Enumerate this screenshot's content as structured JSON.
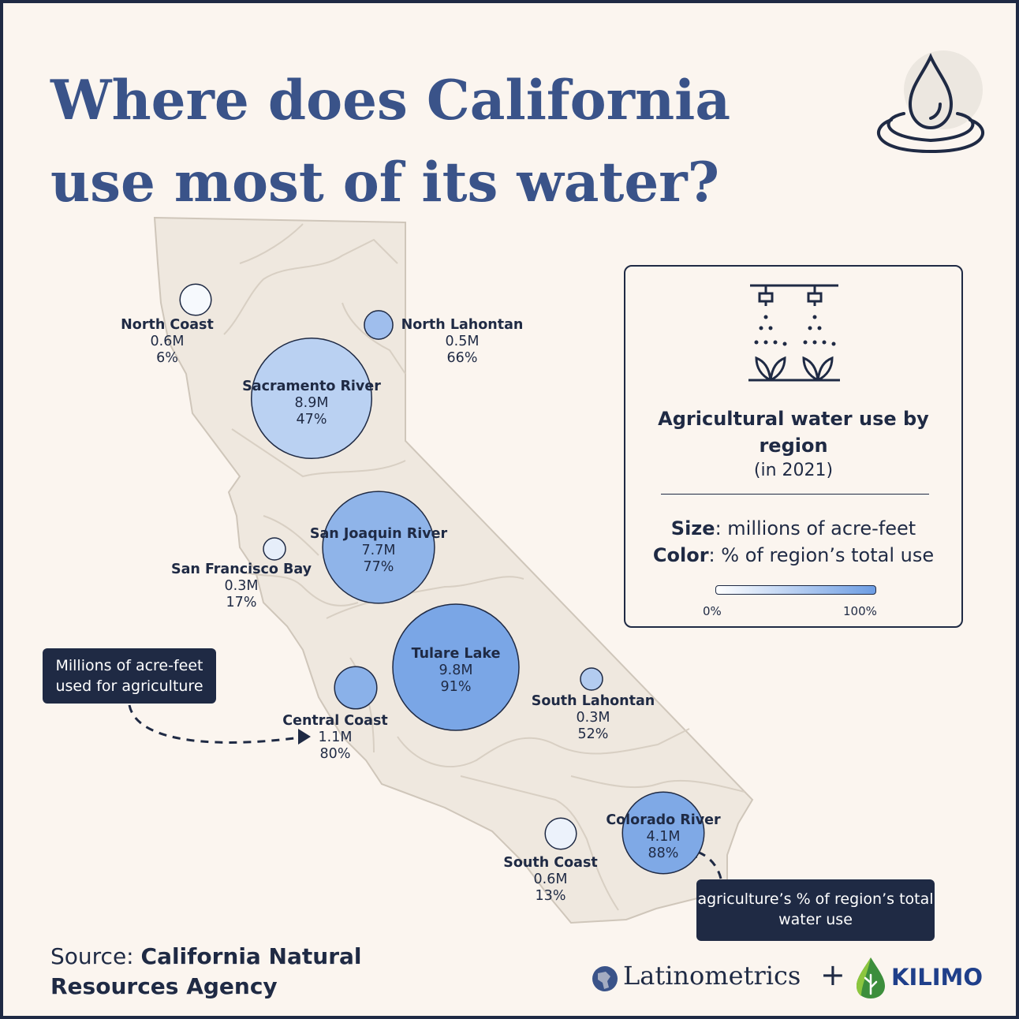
{
  "title": "Where does California use most of its water?",
  "legend": {
    "title": "Agricultural water use by region",
    "year": "(in 2021)",
    "size_key": "Size",
    "size_text": ": millions of acre-feet",
    "color_key": "Color",
    "color_text": ": % of region’s total use",
    "scale_min": "0%",
    "scale_max": "100%",
    "scale_colors": [
      "#ffffff",
      "#6d9de3"
    ]
  },
  "regions": [
    {
      "name": "North Coast",
      "value": "0.6M",
      "pct": "6%",
      "acre_feet_m": 0.6,
      "ag_share": 6
    },
    {
      "name": "North Lahontan",
      "value": "0.5M",
      "pct": "66%",
      "acre_feet_m": 0.5,
      "ag_share": 66
    },
    {
      "name": "Sacramento River",
      "value": "8.9M",
      "pct": "47%",
      "acre_feet_m": 8.9,
      "ag_share": 47
    },
    {
      "name": "San Francisco Bay",
      "value": "0.3M",
      "pct": "17%",
      "acre_feet_m": 0.3,
      "ag_share": 17
    },
    {
      "name": "San Joaquin River",
      "value": "7.7M",
      "pct": "77%",
      "acre_feet_m": 7.7,
      "ag_share": 77
    },
    {
      "name": "Central Coast",
      "value": "1.1M",
      "pct": "80%",
      "acre_feet_m": 1.1,
      "ag_share": 80
    },
    {
      "name": "Tulare Lake",
      "value": "9.8M",
      "pct": "91%",
      "acre_feet_m": 9.8,
      "ag_share": 91
    },
    {
      "name": "South Lahontan",
      "value": "0.3M",
      "pct": "52%",
      "acre_feet_m": 0.3,
      "ag_share": 52
    },
    {
      "name": "South Coast",
      "value": "0.6M",
      "pct": "13%",
      "acre_feet_m": 0.6,
      "ag_share": 13
    },
    {
      "name": "Colorado River",
      "value": "4.1M",
      "pct": "88%",
      "acre_feet_m": 4.1,
      "ag_share": 88
    }
  ],
  "callouts": {
    "size_note": "Millions of acre-feet used for agriculture",
    "color_note": "agriculture’s % of region’s total water use"
  },
  "source": {
    "label": "Source: ",
    "name": "California Natural Resources Agency"
  },
  "brands": {
    "left": "Latinometrics",
    "separator": "+",
    "right": "KILIMO"
  },
  "colors": {
    "title": "#3a5389",
    "ink": "#1f2a44",
    "background": "#fbf5ef",
    "map_fill": "#efe8df",
    "map_lines": "#d8cfc3"
  }
}
